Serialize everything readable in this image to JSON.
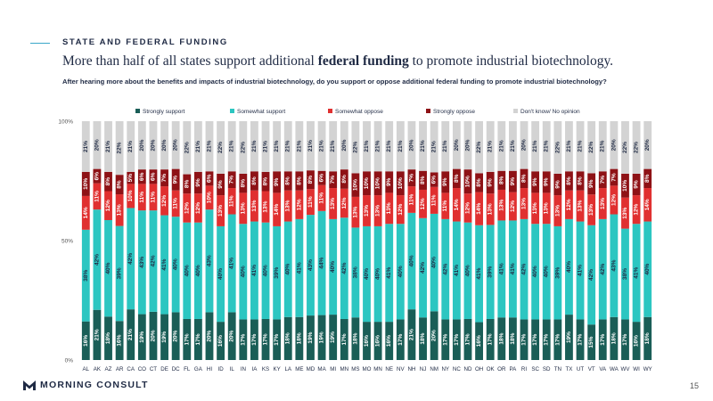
{
  "header": {
    "eyebrow": "STATE AND FEDERAL FUNDING",
    "headline_pre": "More than half of all states support additional ",
    "headline_bold": "federal funding",
    "headline_post": " to promote industrial biotechnology.",
    "question": "After hearing more about the benefits and impacts of industrial biotechnology, do you support or oppose additional federal funding to promote industrial biotechnology?"
  },
  "footer": {
    "logo_text": "MORNING CONSULT",
    "page_number": "15"
  },
  "colors": {
    "strongly_support": "#1a5e57",
    "somewhat_support": "#2cc6c1",
    "somewhat_oppose": "#e03030",
    "strongly_oppose": "#8e1216",
    "no_opinion": "#d3d3d3",
    "axis_text": "#555555"
  },
  "chart_data": {
    "type": "bar",
    "stacked": true,
    "orientation": "vertical",
    "legend_position": "top",
    "ylim": [
      0,
      100
    ],
    "yticks": [
      "0%",
      "50%",
      "100%"
    ],
    "categories": [
      "AL",
      "AK",
      "AZ",
      "AR",
      "CA",
      "CO",
      "CT",
      "DE",
      "DC",
      "FL",
      "GA",
      "HI",
      "ID",
      "IL",
      "IN",
      "IA",
      "KS",
      "KY",
      "LA",
      "ME",
      "MD",
      "MA",
      "MI",
      "MN",
      "MS",
      "MO",
      "MN",
      "NE",
      "NV",
      "NH",
      "NJ",
      "NM",
      "NY",
      "NC",
      "ND",
      "OH",
      "OK",
      "OR",
      "PA",
      "RI",
      "SC",
      "SD",
      "TN",
      "TX",
      "UT",
      "VT",
      "VA",
      "WA",
      "WV",
      "WI",
      "WY"
    ],
    "series": [
      {
        "name": "Strongly support",
        "values": [
          16,
          21,
          18,
          16,
          21,
          19,
          20,
          19,
          20,
          17,
          17,
          20,
          16,
          20,
          17,
          17,
          17,
          17,
          18,
          18,
          19,
          19,
          19,
          17,
          18,
          16,
          16,
          16,
          17,
          21,
          18,
          20,
          17,
          17,
          17,
          16,
          17,
          18,
          18,
          17,
          17,
          17,
          17,
          19,
          17,
          15,
          17,
          18,
          17,
          16,
          18
        ]
      },
      {
        "name": "Somewhat support",
        "values": [
          38,
          42,
          40,
          39,
          42,
          43,
          42,
          41,
          40,
          40,
          40,
          43,
          40,
          41,
          40,
          41,
          40,
          39,
          40,
          41,
          43,
          44,
          40,
          42,
          38,
          40,
          40,
          41,
          40,
          40,
          42,
          40,
          42,
          41,
          40,
          41,
          39,
          41,
          41,
          42,
          40,
          40,
          39,
          40,
          41,
          42,
          42,
          43,
          38,
          41,
          40
        ]
      },
      {
        "name": "Somewhat oppose",
        "values": [
          14,
          11,
          12,
          13,
          10,
          11,
          11,
          12,
          11,
          12,
          12,
          10,
          13,
          11,
          13,
          13,
          13,
          14,
          13,
          12,
          11,
          11,
          13,
          12,
          13,
          13,
          13,
          13,
          12,
          11,
          12,
          11,
          11,
          14,
          12,
          14,
          13,
          13,
          12,
          13,
          13,
          13,
          13,
          12,
          13,
          13,
          13,
          12,
          13,
          12,
          14
        ]
      },
      {
        "name": "Strongly oppose",
        "values": [
          10,
          6,
          8,
          8,
          5,
          6,
          6,
          7,
          9,
          8,
          9,
          6,
          9,
          7,
          8,
          8,
          8,
          9,
          8,
          8,
          8,
          6,
          7,
          8,
          10,
          10,
          10,
          9,
          10,
          7,
          8,
          6,
          9,
          8,
          10,
          8,
          9,
          8,
          9,
          8,
          9,
          9,
          9,
          8,
          8,
          9,
          7,
          7,
          10,
          9,
          8
        ]
      },
      {
        "name": "Don't know/ No opinion",
        "values": [
          21,
          20,
          21,
          22,
          21,
          20,
          20,
          20,
          20,
          22,
          21,
          21,
          22,
          21,
          22,
          21,
          21,
          21,
          21,
          21,
          21,
          21,
          21,
          20,
          22,
          21,
          21,
          21,
          21,
          20,
          21,
          21,
          21,
          20,
          20,
          22,
          21,
          21,
          21,
          20,
          21,
          21,
          22,
          21,
          21,
          22,
          21,
          20,
          22,
          22,
          20
        ]
      }
    ]
  }
}
